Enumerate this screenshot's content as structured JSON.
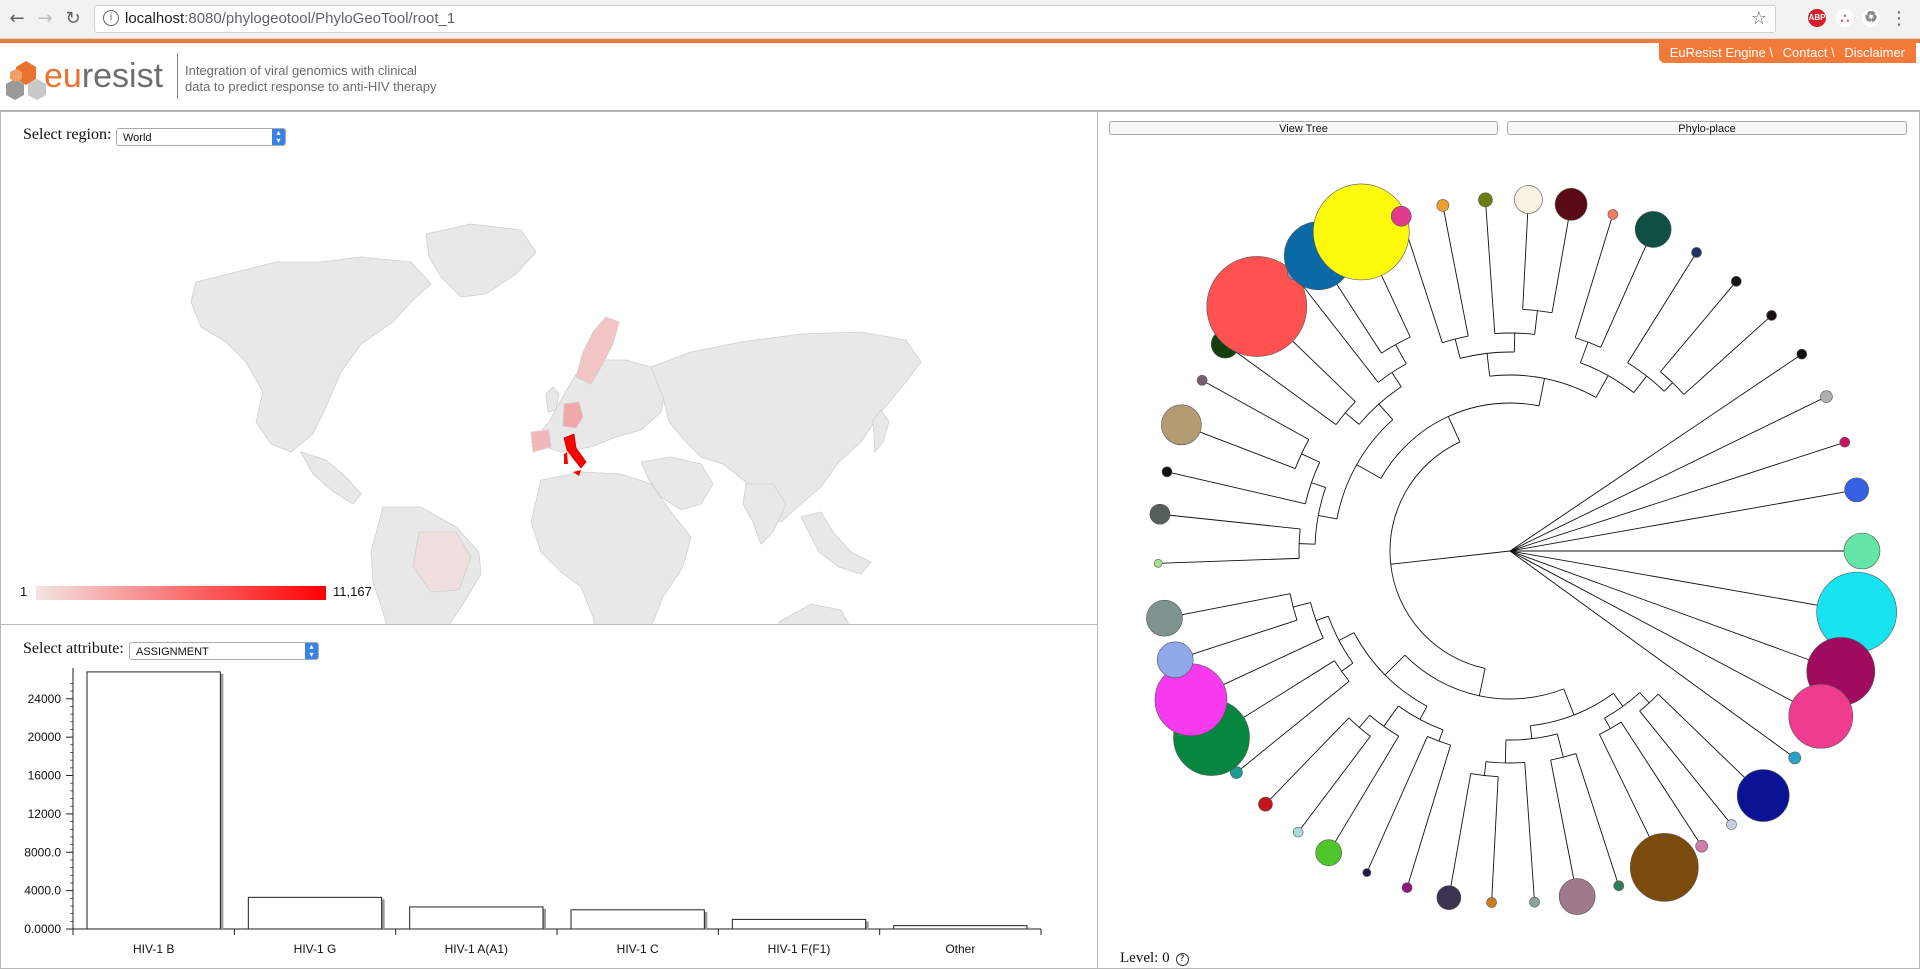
{
  "browser": {
    "url_host": "localhost",
    "url_rest": ":8080/phylogeotool/PhyloGeoTool/root_1",
    "back_icon": "←",
    "forward_icon": "→",
    "reload_icon": "↻",
    "star_icon": "☆",
    "menu_icon": "⋮",
    "ext_abp": "ABP"
  },
  "header": {
    "logo_e": "eu",
    "logo_rest": "resist",
    "tagline_line1": "Integration of viral genomics with clinical",
    "tagline_line2": "data to predict response to anti-HIV therapy",
    "menu": [
      "EuResist Engine \\",
      "Contact \\",
      "Disclaimer"
    ]
  },
  "map_panel": {
    "region_label": "Select region:",
    "region_value": "World",
    "legend_min": "1",
    "legend_max": "11,167"
  },
  "bar_panel": {
    "attribute_label": "Select attribute:",
    "attribute_value": "ASSIGNMENT"
  },
  "tree_panel": {
    "view_tree": "View Tree",
    "phylo_place": "Phylo-place",
    "level_label": "Level: 0",
    "help": "?"
  },
  "chart_data": {
    "type": "bar",
    "categories": [
      "HIV-1 B",
      "HIV-1 G",
      "HIV-1 A(A1)",
      "HIV-1 C",
      "HIV-1 F(F1)",
      "Other"
    ],
    "values": [
      26800,
      3300,
      2300,
      2000,
      1000,
      350
    ],
    "ylim": [
      0,
      27000
    ],
    "yticks": [
      "0.0000",
      "4000.0",
      "8000.0",
      "12000",
      "16000",
      "20000",
      "24000"
    ],
    "ytick_values": [
      0,
      4000,
      8000,
      12000,
      16000,
      20000,
      24000
    ],
    "grid": false
  },
  "tree_leaves": [
    {
      "a": 0,
      "r": 18,
      "c": "#66e6a6"
    },
    {
      "a": 10,
      "r": 40,
      "c": "#18e3f0"
    },
    {
      "a": 20,
      "r": 34,
      "c": "#a00b5e"
    },
    {
      "a": 28,
      "r": 32,
      "c": "#ef3c8f"
    },
    {
      "a": 36,
      "r": 6,
      "c": "#29a4c7"
    },
    {
      "a": 44,
      "r": 26,
      "c": "#0b1394"
    },
    {
      "a": 51,
      "r": 5,
      "c": "#c8cfd8"
    },
    {
      "a": 57,
      "r": 6,
      "c": "#d07ca7"
    },
    {
      "a": 64,
      "r": 34,
      "c": "#7a4b0c"
    },
    {
      "a": 72,
      "r": 5,
      "c": "#2d7f57"
    },
    {
      "a": 79,
      "r": 18,
      "c": "#9e7a8a"
    },
    {
      "a": 86,
      "r": 5,
      "c": "#8aa69c"
    },
    {
      "a": 93,
      "r": 5,
      "c": "#cd7a1c"
    },
    {
      "a": 100,
      "r": 12,
      "c": "#3b3350"
    },
    {
      "a": 107,
      "r": 5,
      "c": "#8d1880"
    },
    {
      "a": 114,
      "r": 4,
      "c": "#1b1b52"
    },
    {
      "a": 121,
      "r": 13,
      "c": "#4fc72c"
    },
    {
      "a": 127,
      "r": 5,
      "c": "#a9dcd5"
    },
    {
      "a": 134,
      "r": 7,
      "c": "#c4141d"
    },
    {
      "a": 141,
      "r": 6,
      "c": "#199c92"
    },
    {
      "a": 148,
      "r": 38,
      "c": "#078640"
    },
    {
      "a": 155,
      "r": 36,
      "c": "#f73af0"
    },
    {
      "a": 162,
      "r": 18,
      "c": "#8fa8e8"
    },
    {
      "a": 169,
      "r": 18,
      "c": "#7d948f"
    },
    {
      "a": 178,
      "r": 4,
      "c": "#a8e08d"
    },
    {
      "a": 186,
      "r": 10,
      "c": "#555f58"
    },
    {
      "a": 193,
      "r": 5,
      "c": "#101010"
    },
    {
      "a": 201,
      "r": 20,
      "c": "#b39b72"
    },
    {
      "a": 209,
      "r": 5,
      "c": "#785e6d"
    },
    {
      "a": 216,
      "r": 14,
      "c": "#143e0c"
    },
    {
      "a": 224,
      "r": 50,
      "c": "#ff514f"
    },
    {
      "a": 232,
      "r": 6,
      "c": "#a78ab5"
    },
    {
      "a": 237,
      "r": 34,
      "c": "#0a6aa6"
    },
    {
      "a": 245,
      "r": 48,
      "c": "#fdf90a"
    },
    {
      "a": 252,
      "r": 10,
      "c": "#e23a8c"
    },
    {
      "a": 259,
      "r": 6,
      "c": "#f0a02c"
    },
    {
      "a": 266,
      "r": 7,
      "c": "#6c7d16"
    },
    {
      "a": 273,
      "r": 14,
      "c": "#f8f3e0"
    },
    {
      "a": 280,
      "r": 16,
      "c": "#5a0a14"
    },
    {
      "a": 287,
      "r": 5,
      "c": "#f07a62"
    },
    {
      "a": 294,
      "r": 18,
      "c": "#0f4f44"
    },
    {
      "a": 302,
      "r": 5,
      "c": "#1c3564"
    },
    {
      "a": 310,
      "r": 5,
      "c": "#151515"
    },
    {
      "a": 318,
      "r": 5,
      "c": "#1a1212"
    },
    {
      "a": 326,
      "r": 5,
      "c": "#111111"
    },
    {
      "a": 334,
      "r": 6,
      "c": "#b0b0b0"
    },
    {
      "a": 342,
      "r": 5,
      "c": "#c51466"
    },
    {
      "a": 350,
      "r": 12,
      "c": "#3661e5"
    }
  ]
}
